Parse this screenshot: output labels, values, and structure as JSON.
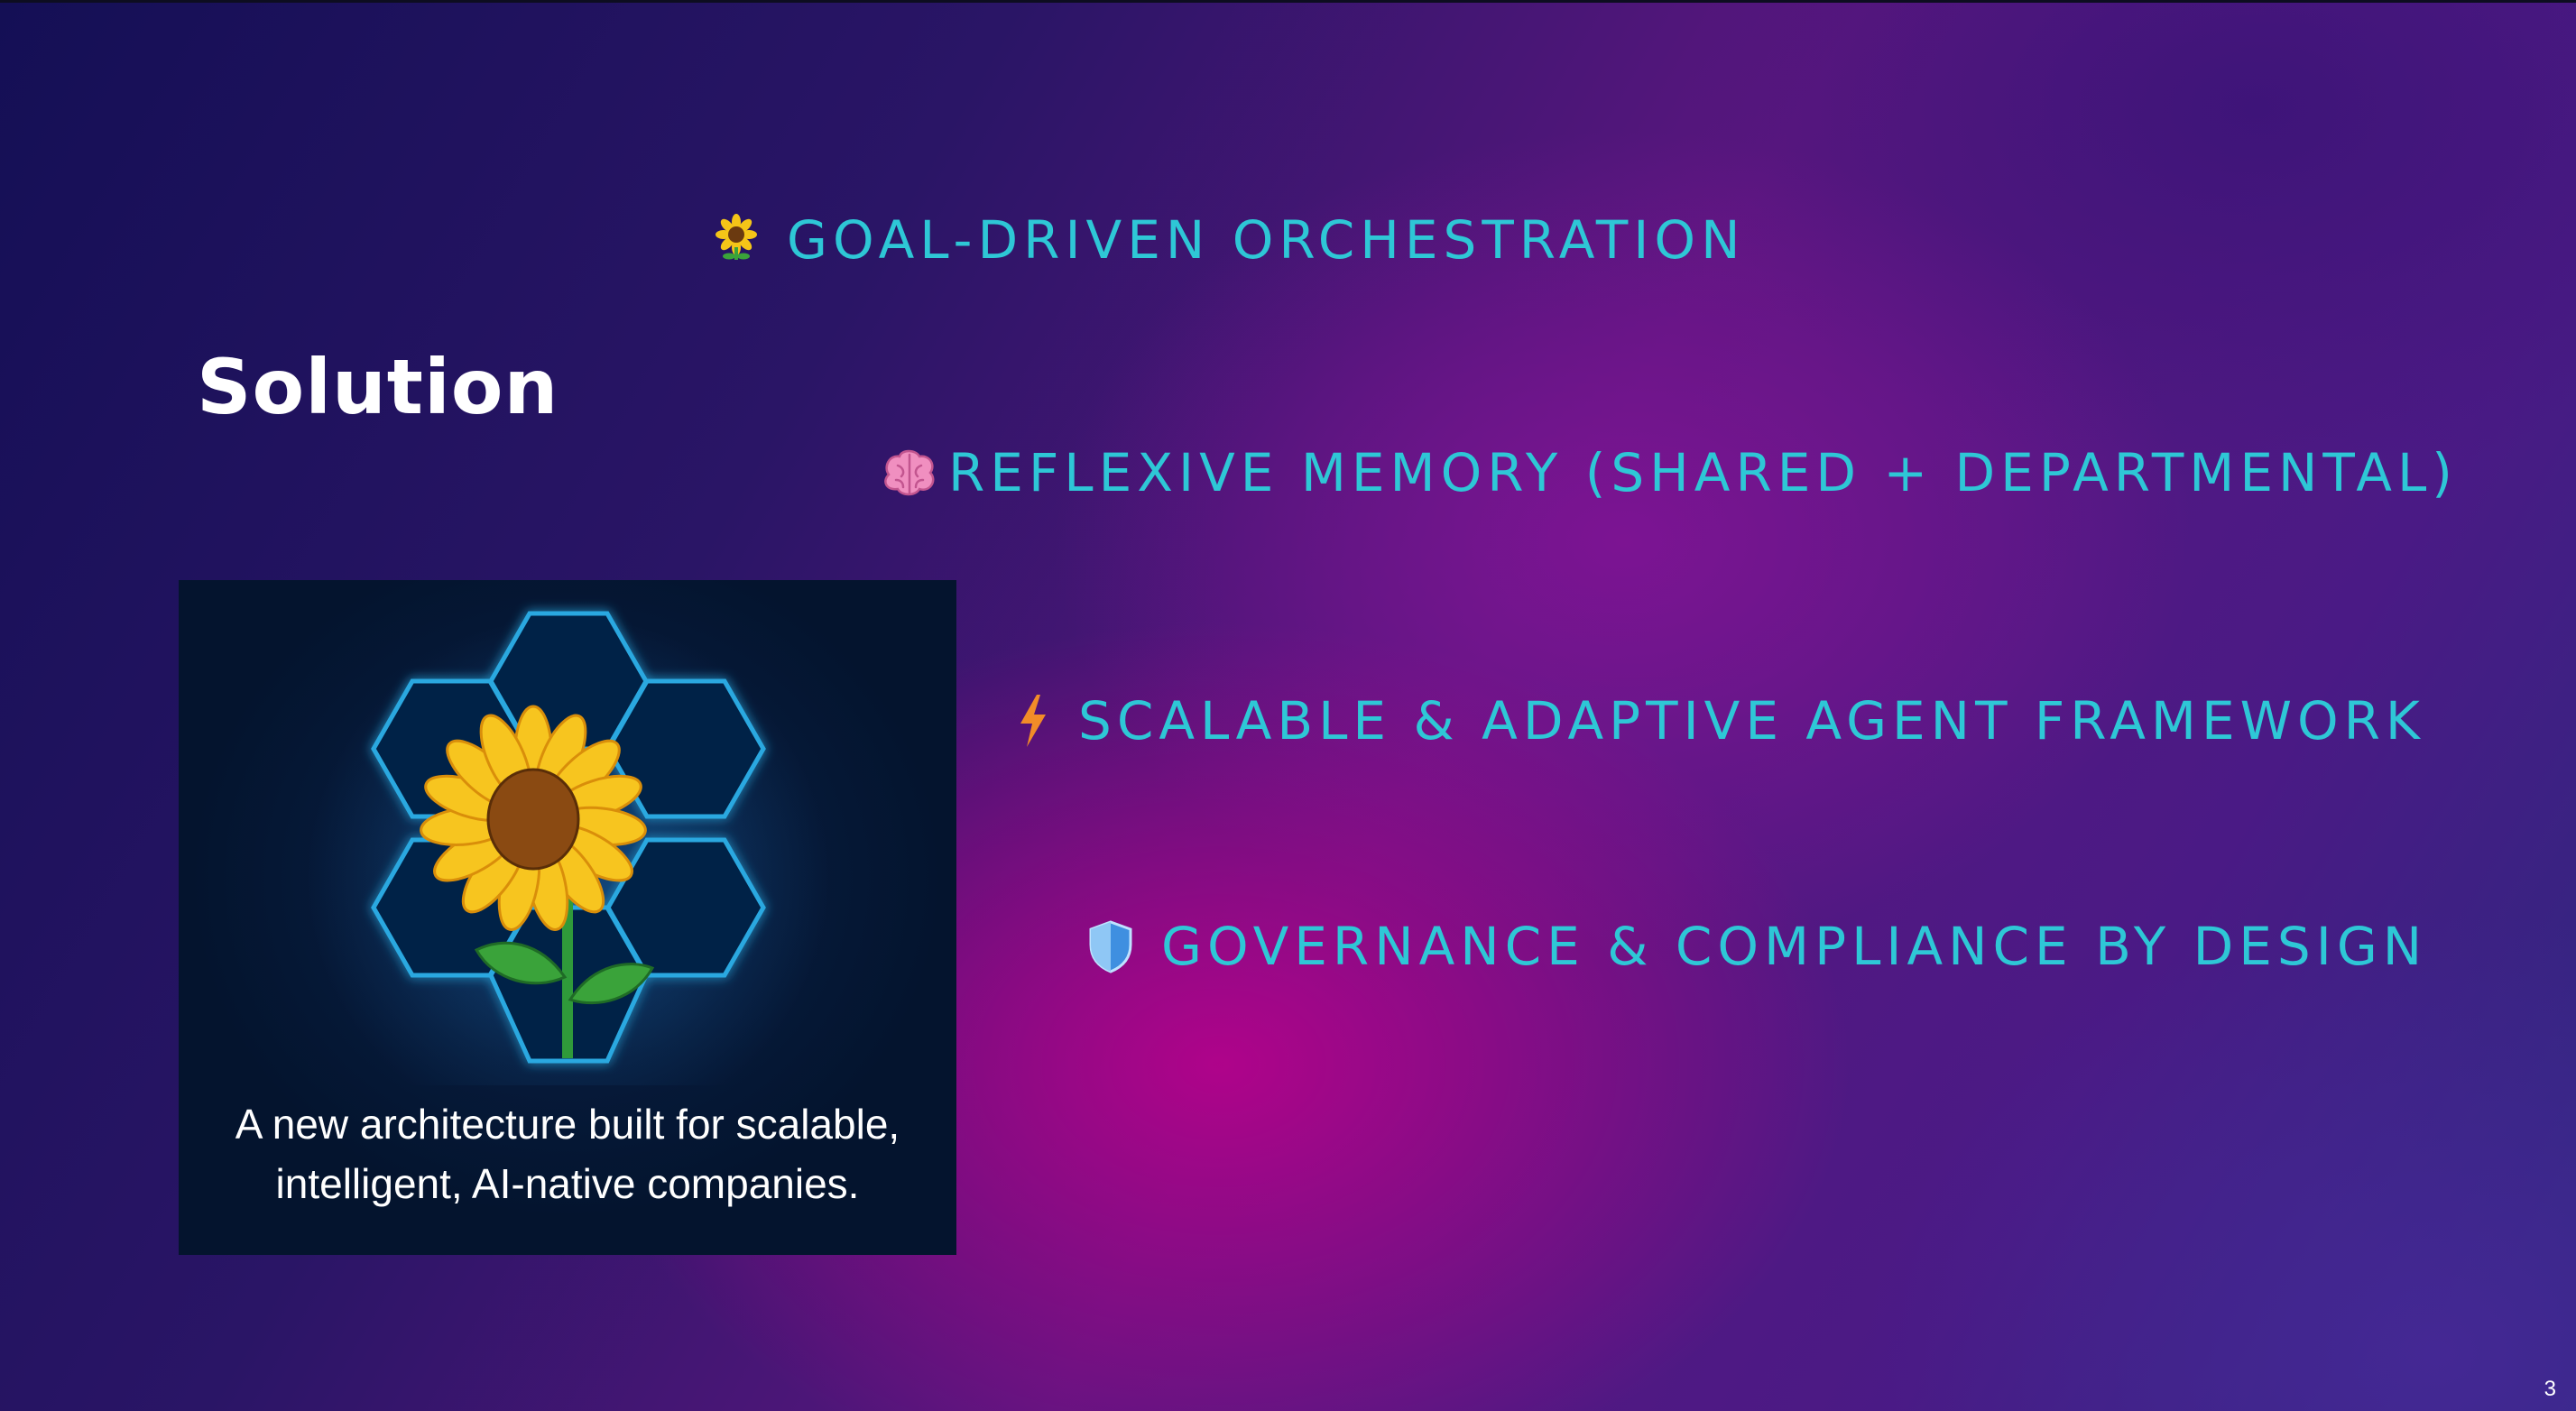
{
  "slide": {
    "title": "Solution",
    "page_number": "3"
  },
  "bullets": [
    {
      "icon": "sunflower-icon",
      "text": "GOAL-DRIVEN ORCHESTRATION"
    },
    {
      "icon": "brain-icon",
      "text": "REFLEXIVE MEMORY (SHARED + DEPARTMENTAL)"
    },
    {
      "icon": "lightning-icon",
      "text": "SCALABLE & ADAPTIVE AGENT FRAMEWORK"
    },
    {
      "icon": "shield-icon",
      "text": "GOVERNANCE & COMPLIANCE BY DESIGN"
    }
  ],
  "card": {
    "image": "sunflower-hexagon-illustration",
    "caption_line1": "A new architecture built for scalable,",
    "caption_line2": "intelligent, AI-native companies."
  },
  "colors": {
    "accent_text": "#2ec7d6",
    "title": "#ffffff",
    "hexagon_stroke": "#2aa8e0",
    "petal": "#f5c518",
    "center": "#8a4a12"
  }
}
